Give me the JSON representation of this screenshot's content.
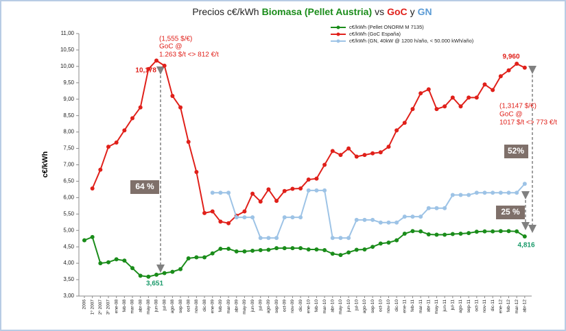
{
  "chart_data": {
    "type": "line",
    "title_parts": [
      {
        "text": "Precios c€/kWh",
        "color": "#222222"
      },
      {
        "text": "Biomasa (Pellet Austria)",
        "color": "#1a8c1a",
        "bold": true
      },
      {
        "text": "vs",
        "color": "#222222"
      },
      {
        "text": "GoC",
        "color": "#e0201a",
        "bold": true
      },
      {
        "text": "y",
        "color": "#222222"
      },
      {
        "text": "GN",
        "color": "#5b9bd5",
        "bold": true
      }
    ],
    "y_label": "c€/kWh",
    "categories": [
      "2006",
      "1º 2007",
      "2º 2007",
      "3º 2007",
      "ene-08",
      "feb-08",
      "mar-08",
      "abr-08",
      "may-08",
      "jun-08",
      "jul-08",
      "ago-08",
      "sep-08",
      "oct-08",
      "nov-08",
      "dic-08",
      "ene-09",
      "feb-09",
      "mar-09",
      "abr-09",
      "may-09",
      "jun-09",
      "jul-09",
      "ago-09",
      "sep-09",
      "oct-09",
      "nov-09",
      "dic-09",
      "ene-10",
      "feb-10",
      "mar-10",
      "abr-10",
      "may-10",
      "jun-10",
      "jul-10",
      "ago-10",
      "sep-10",
      "oct-10",
      "nov-10",
      "dic-10",
      "ene-11",
      "feb-11",
      "mar-11",
      "abr-11",
      "may-11",
      "jun-11",
      "jul-11",
      "ago-11",
      "sep-11",
      "oct-11",
      "nov-11",
      "dic-11",
      "ene-12",
      "feb-12",
      "mar-12",
      "abr-12"
    ],
    "series": [
      {
        "name": "c€/kWh (Pellet ONORM M 7135)",
        "color": "#1a8c1a",
        "values": [
          4.7,
          4.8,
          4.0,
          4.03,
          4.12,
          4.08,
          3.85,
          3.62,
          3.59,
          3.651,
          3.7,
          3.74,
          3.82,
          4.15,
          4.18,
          4.18,
          4.3,
          4.44,
          4.44,
          4.36,
          4.36,
          4.38,
          4.4,
          4.41,
          4.46,
          4.46,
          4.46,
          4.46,
          4.42,
          4.42,
          4.4,
          4.29,
          4.25,
          4.33,
          4.41,
          4.42,
          4.5,
          4.6,
          4.63,
          4.7,
          4.9,
          4.98,
          4.97,
          4.88,
          4.87,
          4.87,
          4.89,
          4.9,
          4.92,
          4.96,
          4.97,
          4.97,
          4.98,
          4.98,
          4.97,
          4.816
        ]
      },
      {
        "name": "c€/kWh (GoC España)",
        "color": "#e0201a",
        "values": [
          null,
          6.28,
          6.85,
          7.55,
          7.68,
          8.05,
          8.42,
          8.75,
          9.92,
          10.178,
          10.02,
          9.1,
          8.75,
          7.7,
          6.78,
          5.53,
          5.58,
          5.27,
          5.22,
          5.45,
          5.58,
          6.12,
          5.88,
          6.25,
          5.9,
          6.2,
          6.27,
          6.28,
          6.55,
          6.58,
          7.0,
          7.42,
          7.3,
          7.5,
          7.25,
          7.3,
          7.35,
          7.38,
          7.55,
          8.05,
          8.28,
          8.7,
          9.18,
          9.3,
          8.7,
          8.78,
          9.05,
          8.78,
          9.05,
          9.05,
          9.45,
          9.28,
          9.7,
          9.88,
          10.08,
          9.96
        ]
      },
      {
        "name": "c€/kWh (GN, 40kW @ 1200 h/año, < 50.000 kWh/año)",
        "color": "#9dc3e6",
        "values": [
          null,
          null,
          null,
          null,
          null,
          null,
          null,
          null,
          null,
          null,
          null,
          null,
          null,
          null,
          null,
          null,
          6.15,
          6.15,
          6.15,
          5.4,
          5.4,
          5.4,
          4.77,
          4.77,
          4.77,
          5.4,
          5.4,
          5.4,
          6.22,
          6.22,
          6.22,
          4.77,
          4.77,
          4.77,
          5.32,
          5.32,
          5.32,
          5.24,
          5.24,
          5.24,
          5.42,
          5.42,
          5.42,
          5.68,
          5.68,
          5.68,
          6.08,
          6.08,
          6.08,
          6.15,
          6.15,
          6.15,
          6.15,
          6.15,
          6.15,
          6.42
        ]
      }
    ],
    "ylim": [
      3,
      11
    ],
    "yticks": [
      {
        "value": 3,
        "label": "3,00"
      },
      {
        "value": 3.5,
        "label": "3,50"
      },
      {
        "value": 4,
        "label": "4,00"
      },
      {
        "value": 4.5,
        "label": "4,50"
      },
      {
        "value": 5,
        "label": "5,00"
      },
      {
        "value": 5.5,
        "label": "5,50"
      },
      {
        "value": 6,
        "label": "6,00"
      },
      {
        "value": 6.5,
        "label": "6,50"
      },
      {
        "value": 7,
        "label": "7,00"
      },
      {
        "value": 7.5,
        "label": "7,50"
      },
      {
        "value": 8,
        "label": "8,00"
      },
      {
        "value": 8.5,
        "label": "8,50"
      },
      {
        "value": 9,
        "label": "9,00"
      },
      {
        "value": 9.5,
        "label": "9,50"
      },
      {
        "value": 10,
        "label": "10,00"
      },
      {
        "value": 10.5,
        "label": "10,50"
      },
      {
        "value": 11,
        "label": "11,00"
      }
    ],
    "grid": false,
    "legend": "top-right",
    "annotations": [
      {
        "text": "10,178",
        "color": "#e0201a",
        "bold": true
      },
      {
        "text": "(1,555 $/€)",
        "color": "#e0201a"
      },
      {
        "text": "GoC @",
        "color": "#e0201a"
      },
      {
        "text": "1.263 $/t <> 812 €/t",
        "color": "#e0201a"
      },
      {
        "text": "3,651",
        "color": "#1a9a6a",
        "bold": true
      },
      {
        "text": "9,960",
        "color": "#e0201a",
        "bold": true
      },
      {
        "text": "(1,3147 $/€)",
        "color": "#e0201a"
      },
      {
        "text": "GoC @",
        "color": "#e0201a"
      },
      {
        "text": "1017 $/t <> 773 €/t",
        "color": "#e0201a"
      },
      {
        "text": "4,816",
        "color": "#1a9a6a",
        "bold": true
      },
      {
        "text": "64 %",
        "color": "#ffffff",
        "bold": true
      },
      {
        "text": "52%",
        "color": "#ffffff",
        "bold": true
      },
      {
        "text": "25 %",
        "color": "#ffffff",
        "bold": true
      }
    ]
  }
}
